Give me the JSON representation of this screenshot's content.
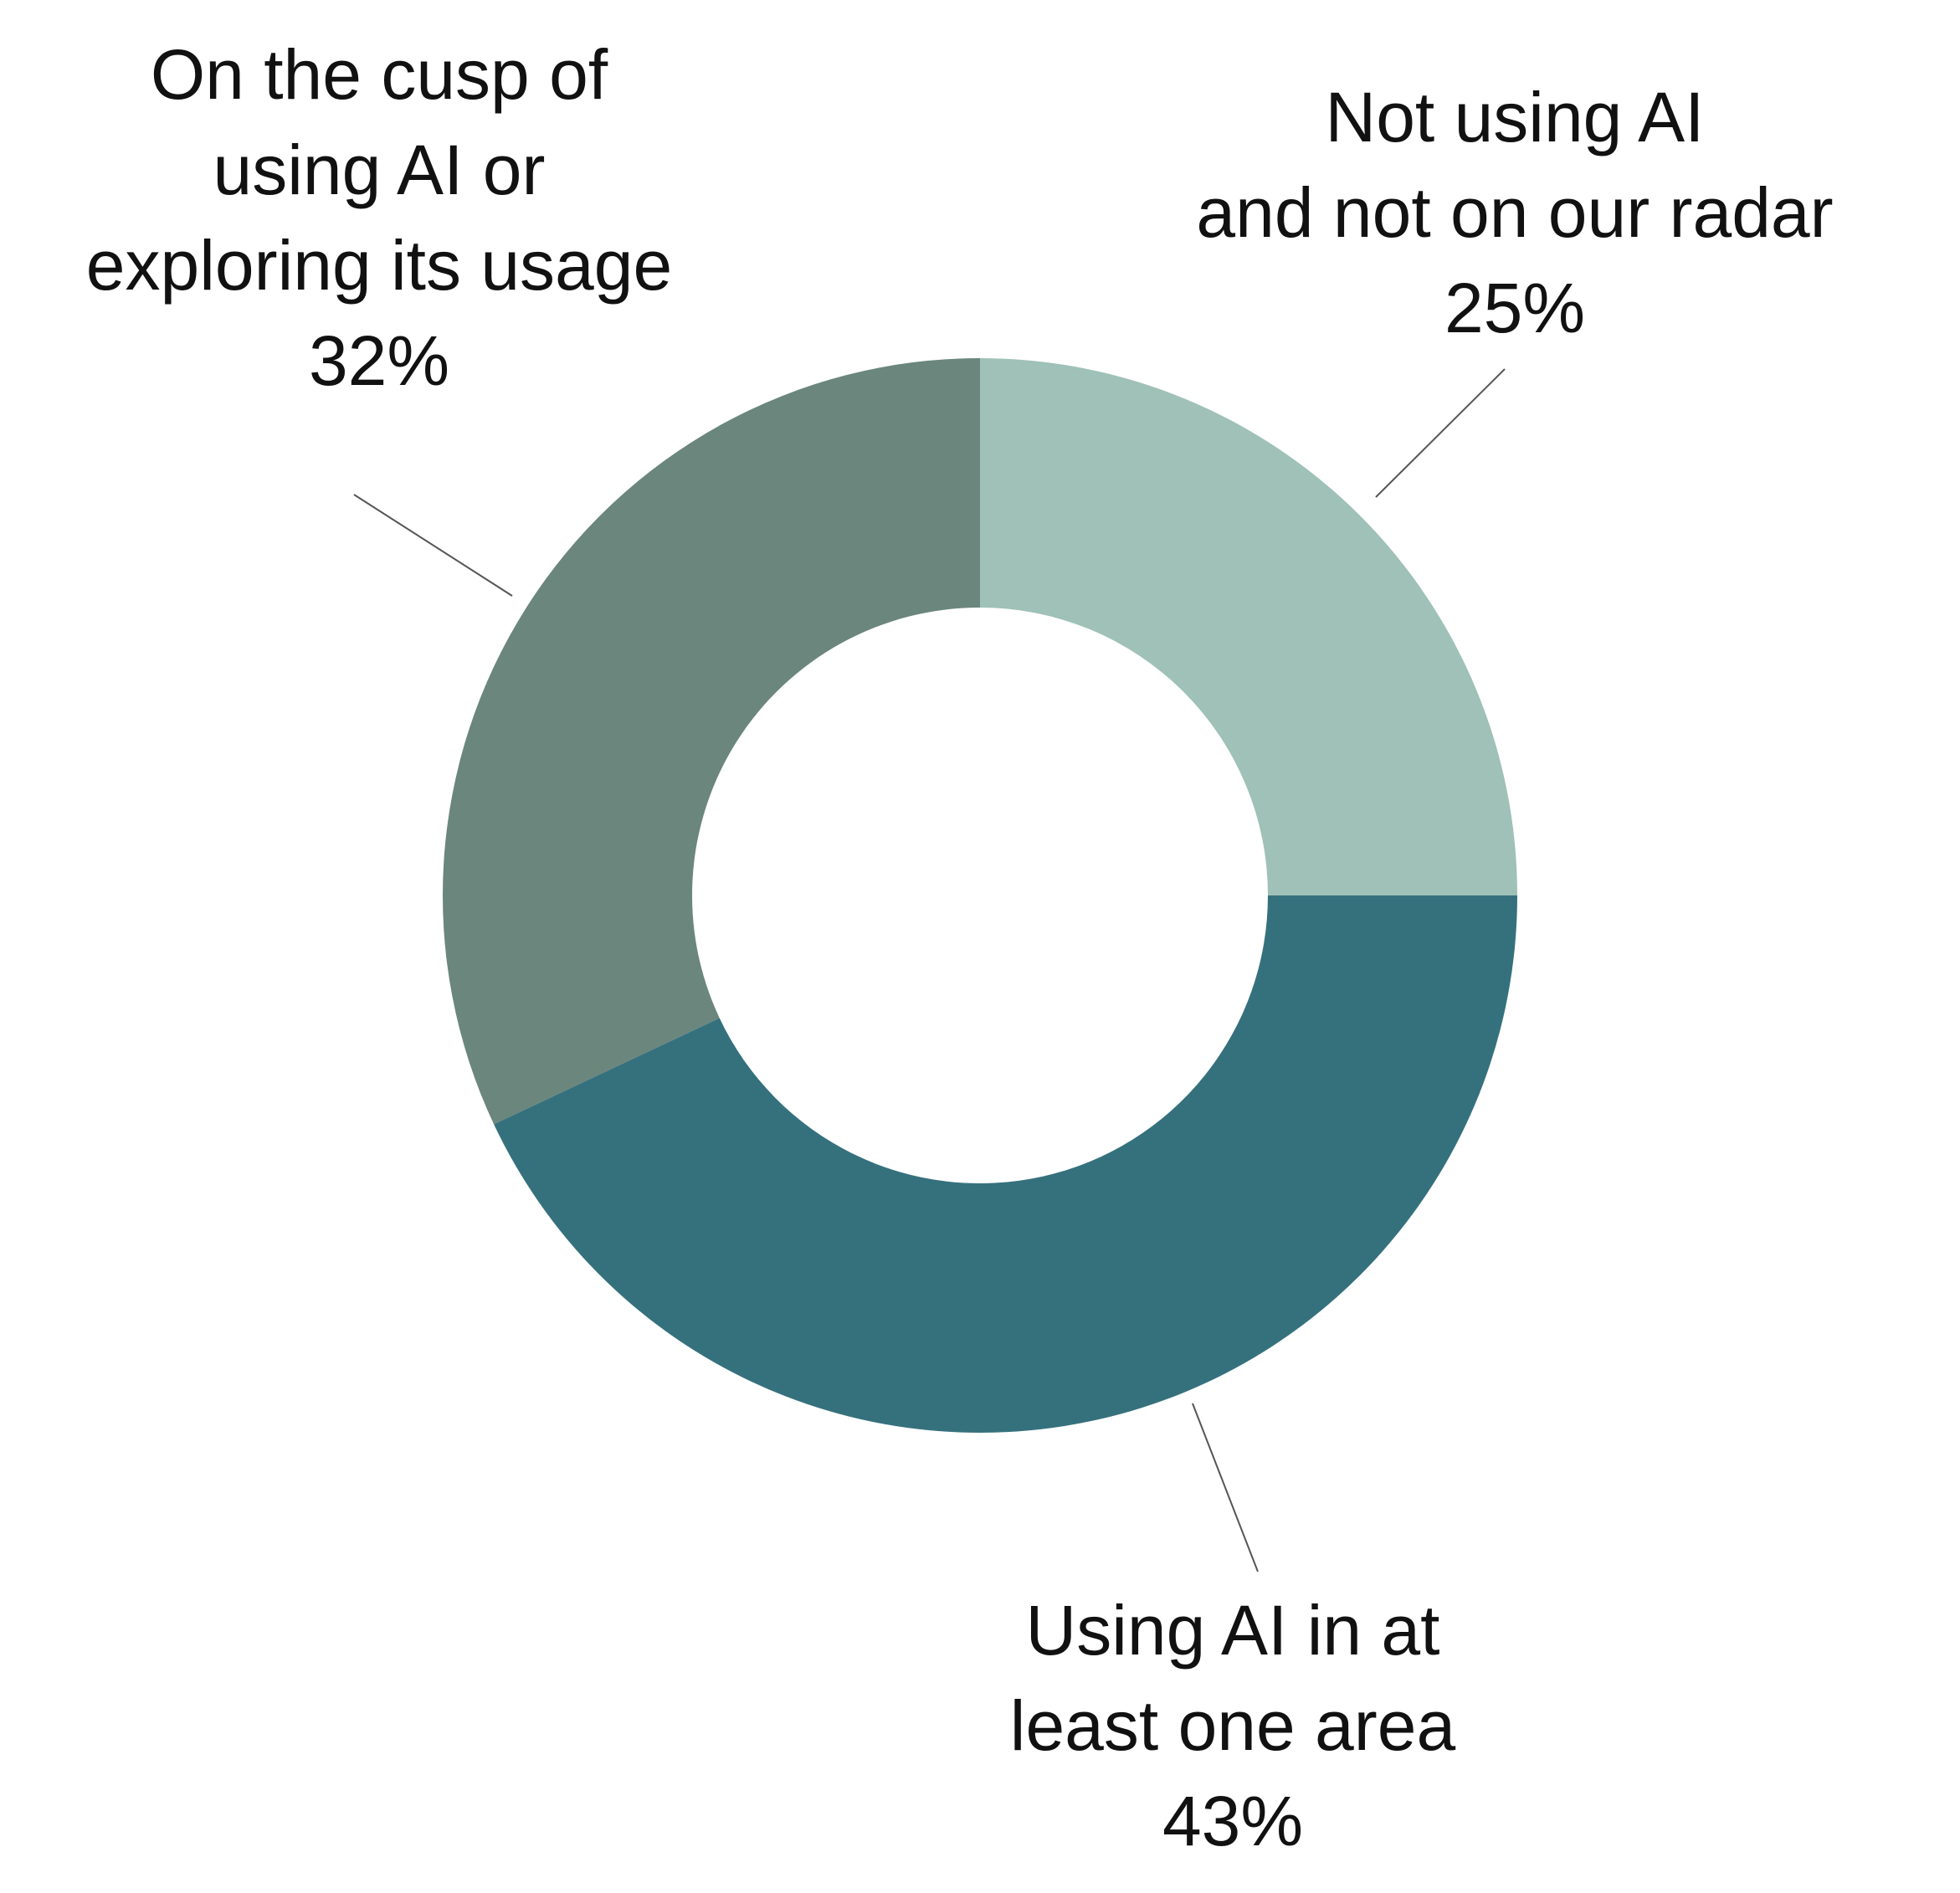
{
  "chart_data": {
    "type": "donut",
    "categories": [
      "Not using AI\nand not on our radar",
      "Using AI in at\nleast one area",
      "On the cusp of\nusing AI or\nexploring its usage"
    ],
    "values": [
      25,
      43,
      32
    ],
    "value_labels": [
      "25%",
      "43%",
      "32%"
    ],
    "colors": [
      "#9fc1b7",
      "#35717d",
      "#6b867d"
    ]
  }
}
